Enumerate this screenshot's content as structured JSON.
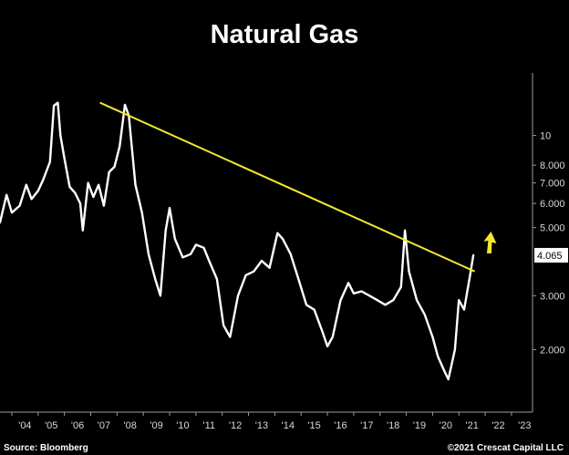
{
  "footer": {
    "source": "Source: Bloomberg",
    "copyright": "©2021 Crescat Capital LLC"
  },
  "colors": {
    "background": "#000000",
    "series": "#ffffff",
    "trendline": "#f2e830",
    "arrow": "#f2e830"
  },
  "chart_data": {
    "type": "line",
    "title": "Natural Gas",
    "xlabel": "",
    "ylabel": "",
    "y_scale": "log",
    "ylim": [
      1.25,
      16
    ],
    "xlim": [
      2003.55,
      2023.8
    ],
    "x_ticks": [
      "'04",
      "'05",
      "'06",
      "'07",
      "'08",
      "'09",
      "'10",
      "'11",
      "'12",
      "'13",
      "'14",
      "'15",
      "'16",
      "'17",
      "'18",
      "'19",
      "'20",
      "'21",
      "'22",
      "'23"
    ],
    "y_ticks": [
      {
        "value": 10,
        "label": "10"
      },
      {
        "value": 8,
        "label": "8.000"
      },
      {
        "value": 7,
        "label": "7.000"
      },
      {
        "value": 6,
        "label": "6.000"
      },
      {
        "value": 5,
        "label": "5.000"
      },
      {
        "value": 3,
        "label": "3.000"
      },
      {
        "value": 2,
        "label": "2.000"
      }
    ],
    "last_price": {
      "value": 4.065,
      "label": "4.065"
    },
    "grid": false,
    "legend": "none",
    "series": [
      {
        "x": [
          2003.55,
          2003.8,
          2004.0,
          2004.3,
          2004.55,
          2004.75,
          2005.0,
          2005.2,
          2005.45,
          2005.6,
          2005.75,
          2005.85,
          2006.0,
          2006.2,
          2006.4,
          2006.6,
          2006.7,
          2006.9,
          2007.1,
          2007.3,
          2007.5,
          2007.7,
          2007.9,
          2008.1,
          2008.3,
          2008.45,
          2008.7,
          2008.95,
          2009.2,
          2009.45,
          2009.65,
          2009.85,
          2010.0,
          2010.2,
          2010.5,
          2010.8,
          2011.0,
          2011.3,
          2011.5,
          2011.8,
          2012.05,
          2012.3,
          2012.6,
          2012.9,
          2013.2,
          2013.5,
          2013.8,
          2014.1,
          2014.3,
          2014.6,
          2014.9,
          2015.2,
          2015.5,
          2015.8,
          2016.0,
          2016.2,
          2016.5,
          2016.8,
          2017.0,
          2017.3,
          2017.6,
          2017.9,
          2018.2,
          2018.5,
          2018.8,
          2018.95,
          2019.1,
          2019.4,
          2019.7,
          2020.0,
          2020.2,
          2020.45,
          2020.6,
          2020.85,
          2021.0,
          2021.2,
          2021.4,
          2021.55
        ],
        "y": [
          5.2,
          6.4,
          5.6,
          5.9,
          6.9,
          6.2,
          6.6,
          7.2,
          8.2,
          12.5,
          12.8,
          10.0,
          8.4,
          6.8,
          6.5,
          6.0,
          4.9,
          7.0,
          6.3,
          6.9,
          5.9,
          7.6,
          7.9,
          9.2,
          12.6,
          11.6,
          6.9,
          5.6,
          4.1,
          3.4,
          3.0,
          4.9,
          5.8,
          4.6,
          4.0,
          4.1,
          4.4,
          4.3,
          3.9,
          3.4,
          2.4,
          2.2,
          3.0,
          3.5,
          3.6,
          3.9,
          3.7,
          4.8,
          4.6,
          4.1,
          3.4,
          2.8,
          2.7,
          2.3,
          2.05,
          2.2,
          2.9,
          3.3,
          3.05,
          3.1,
          3.0,
          2.9,
          2.8,
          2.9,
          3.2,
          4.9,
          3.6,
          2.9,
          2.6,
          2.2,
          1.9,
          1.7,
          1.6,
          2.0,
          2.9,
          2.7,
          3.4,
          4.065
        ]
      },
      {
        "x": [
          2007.35,
          2021.6
        ],
        "y": [
          12.8,
          3.6
        ]
      }
    ]
  }
}
